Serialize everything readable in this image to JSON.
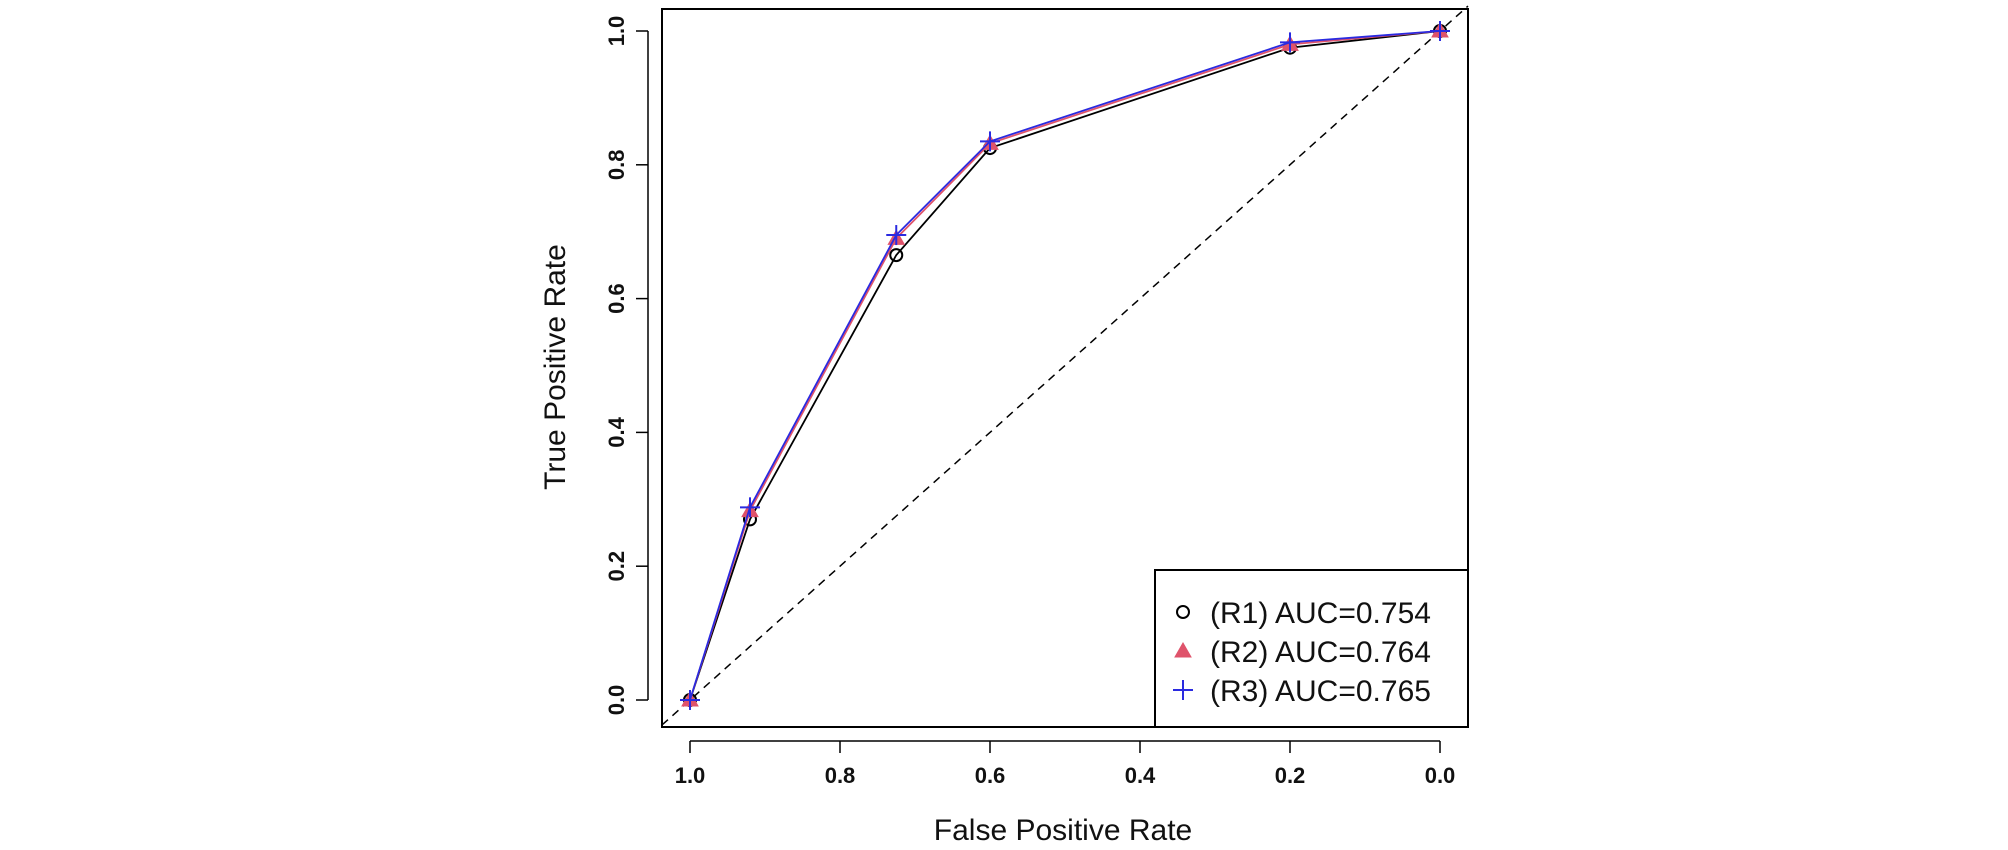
{
  "chart_data": {
    "type": "line",
    "title": "",
    "xlabel": "False Positive Rate",
    "ylabel": "True Positive Rate",
    "xlim": [
      1.0,
      0.0
    ],
    "ylim": [
      0.0,
      1.0
    ],
    "x_reversed": true,
    "x_ticks": [
      1.0,
      0.8,
      0.6,
      0.4,
      0.2,
      0.0
    ],
    "x_tick_labels": [
      "1.0",
      "0.8",
      "0.6",
      "0.4",
      "0.2",
      "0.0"
    ],
    "y_ticks": [
      0.0,
      0.2,
      0.4,
      0.6,
      0.8,
      1.0
    ],
    "y_tick_labels": [
      "0.0",
      "0.2",
      "0.4",
      "0.6",
      "0.8",
      "1.0"
    ],
    "grid": false,
    "legend_position": "bottom-right",
    "reference_line": {
      "style": "dashed",
      "color": "#000000",
      "from": [
        1.0,
        0.0
      ],
      "to": [
        0.0,
        1.0
      ]
    },
    "series": [
      {
        "name": "(R1) AUC=0.754",
        "marker": "circle",
        "color": "#000000",
        "x": [
          1.0,
          0.92,
          0.725,
          0.6,
          0.2,
          0.0
        ],
        "y": [
          0.0,
          0.27,
          0.665,
          0.825,
          0.975,
          1.0
        ]
      },
      {
        "name": "(R2) AUC=0.764",
        "marker": "triangle",
        "color": "#df536b",
        "x": [
          1.0,
          0.92,
          0.725,
          0.6,
          0.2,
          0.0
        ],
        "y": [
          0.0,
          0.283,
          0.69,
          0.832,
          0.98,
          1.0
        ]
      },
      {
        "name": "(R3) AUC=0.765",
        "marker": "plus",
        "color": "#2a2ae0",
        "x": [
          1.0,
          0.92,
          0.725,
          0.6,
          0.2,
          0.0
        ],
        "y": [
          0.0,
          0.288,
          0.695,
          0.835,
          0.983,
          1.0
        ]
      }
    ]
  }
}
